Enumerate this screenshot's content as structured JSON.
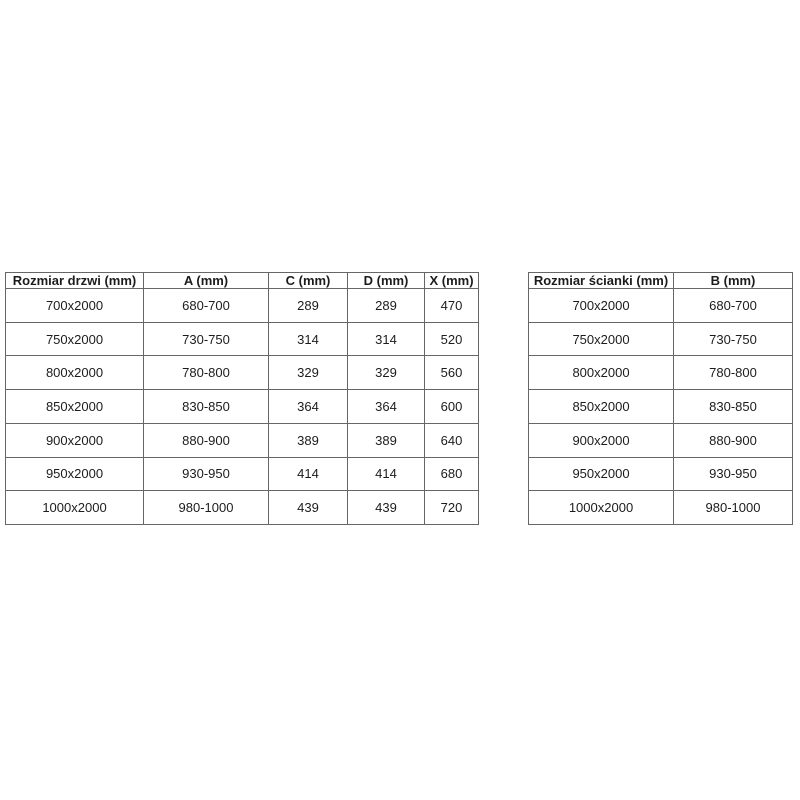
{
  "colors": {
    "background": "#ffffff",
    "table_border": "#666666",
    "text": "#1c1c1c"
  },
  "chart_data": [
    {
      "type": "table",
      "name": "door-sizes",
      "columns": [
        "Rozmiar drzwi (mm)",
        "A (mm)",
        "C (mm)",
        "D (mm)",
        "X (mm)"
      ],
      "rows": [
        [
          "700x2000",
          "680-700",
          "289",
          "289",
          "470"
        ],
        [
          "750x2000",
          "730-750",
          "314",
          "314",
          "520"
        ],
        [
          "800x2000",
          "780-800",
          "329",
          "329",
          "560"
        ],
        [
          "850x2000",
          "830-850",
          "364",
          "364",
          "600"
        ],
        [
          "900x2000",
          "880-900",
          "389",
          "389",
          "640"
        ],
        [
          "950x2000",
          "930-950",
          "414",
          "414",
          "680"
        ],
        [
          "1000x2000",
          "980-1000",
          "439",
          "439",
          "720"
        ]
      ]
    },
    {
      "type": "table",
      "name": "wall-panel-sizes",
      "columns": [
        "Rozmiar ścianki (mm)",
        "B (mm)"
      ],
      "rows": [
        [
          "700x2000",
          "680-700"
        ],
        [
          "750x2000",
          "730-750"
        ],
        [
          "800x2000",
          "780-800"
        ],
        [
          "850x2000",
          "830-850"
        ],
        [
          "900x2000",
          "880-900"
        ],
        [
          "950x2000",
          "930-950"
        ],
        [
          "1000x2000",
          "980-1000"
        ]
      ]
    }
  ]
}
